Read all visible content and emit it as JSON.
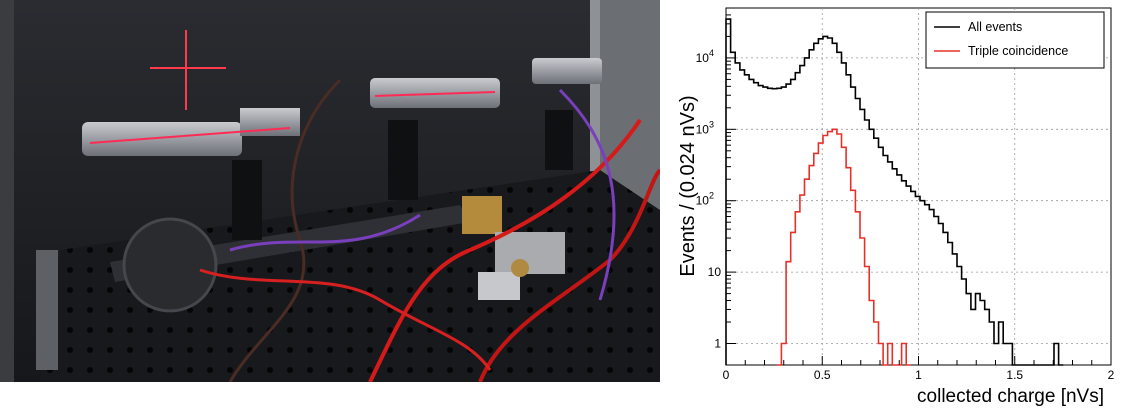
{
  "photo": {
    "description_icon": "lab-setup-photo-icon"
  },
  "chart_data": {
    "type": "histogram-step",
    "xlabel": "collected charge [nVs]",
    "ylabel": "Events / (0.024 nVs)",
    "xlim": [
      0,
      2
    ],
    "ylim": [
      0.5,
      50000
    ],
    "yscale": "log",
    "grid": true,
    "legend_position": "top-right",
    "x_ticks": [
      "0",
      "0.5",
      "1",
      "1.5",
      "2"
    ],
    "y_ticks": [
      {
        "label": "1",
        "value": 1
      },
      {
        "label": "10",
        "value": 10
      },
      {
        "label": "10",
        "sup": "2",
        "value": 100
      },
      {
        "label": "10",
        "sup": "3",
        "value": 1000
      },
      {
        "label": "10",
        "sup": "4",
        "value": 10000
      }
    ],
    "bin_width": 0.024,
    "series": [
      {
        "name": "All events",
        "color": "#000000",
        "x": [
          0.0,
          0.024,
          0.048,
          0.072,
          0.096,
          0.12,
          0.144,
          0.168,
          0.192,
          0.216,
          0.24,
          0.264,
          0.288,
          0.312,
          0.336,
          0.36,
          0.384,
          0.408,
          0.432,
          0.456,
          0.48,
          0.504,
          0.528,
          0.552,
          0.576,
          0.6,
          0.624,
          0.648,
          0.672,
          0.696,
          0.72,
          0.744,
          0.768,
          0.792,
          0.816,
          0.84,
          0.864,
          0.888,
          0.912,
          0.936,
          0.96,
          0.984,
          1.008,
          1.032,
          1.056,
          1.08,
          1.104,
          1.128,
          1.152,
          1.176,
          1.2,
          1.224,
          1.248,
          1.272,
          1.296,
          1.32,
          1.344,
          1.368,
          1.392,
          1.416,
          1.44,
          1.464,
          1.488,
          1.512,
          1.536,
          1.56,
          1.584,
          1.608,
          1.632,
          1.656,
          1.68,
          1.704,
          1.728
        ],
        "values": [
          35000,
          12000,
          8500,
          6800,
          5800,
          5000,
          4500,
          4100,
          3900,
          3750,
          3700,
          3750,
          3900,
          4300,
          5000,
          6200,
          7800,
          10000,
          13000,
          16000,
          18500,
          20000,
          19000,
          16000,
          12000,
          8500,
          5800,
          3900,
          2700,
          1900,
          1350,
          1000,
          750,
          560,
          430,
          350,
          280,
          230,
          190,
          160,
          135,
          115,
          100,
          88,
          75,
          60,
          48,
          36,
          26,
          18,
          12,
          8,
          5,
          3,
          5,
          4,
          3,
          2,
          1,
          2,
          1,
          1,
          0,
          0,
          0,
          0,
          0,
          0,
          0,
          0,
          0,
          1,
          0
        ]
      },
      {
        "name": "Triple coincidence",
        "color": "#e8302a",
        "x": [
          0.264,
          0.288,
          0.312,
          0.336,
          0.36,
          0.384,
          0.408,
          0.432,
          0.456,
          0.48,
          0.504,
          0.528,
          0.552,
          0.576,
          0.6,
          0.624,
          0.648,
          0.672,
          0.696,
          0.72,
          0.744,
          0.768,
          0.792,
          0.816,
          0.84,
          0.864,
          0.888,
          0.912,
          0.936
        ],
        "values": [
          0,
          1,
          14,
          36,
          70,
          120,
          200,
          310,
          460,
          640,
          820,
          930,
          1000,
          860,
          560,
          290,
          140,
          70,
          30,
          12,
          4,
          2,
          1,
          0,
          1,
          0,
          0,
          1,
          0
        ]
      }
    ]
  }
}
